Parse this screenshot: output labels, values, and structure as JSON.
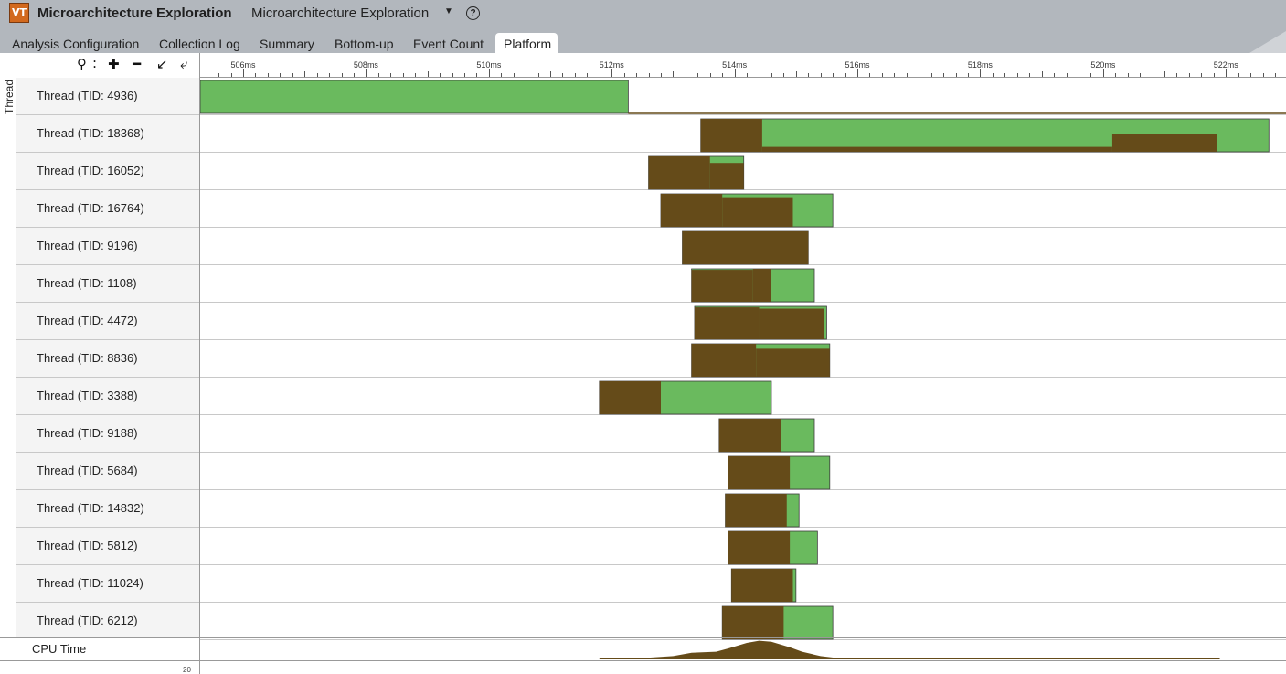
{
  "app": {
    "title": "Microarchitecture Exploration",
    "analysis_name": "Microarchitecture Exploration",
    "logo_text": "VT",
    "logo_icon": "vtune-logo-icon",
    "dropdown_icon": "chevron-down-icon",
    "help_icon": "help-circle-icon",
    "help_glyph": "?"
  },
  "tabs": [
    {
      "label": "Analysis Configuration",
      "active": false
    },
    {
      "label": "Collection Log",
      "active": false
    },
    {
      "label": "Summary",
      "active": false
    },
    {
      "label": "Bottom-up",
      "active": false
    },
    {
      "label": "Event Count",
      "active": false
    },
    {
      "label": "Platform",
      "active": true
    }
  ],
  "toolbar": {
    "zoom_icon": "magnifier-icon",
    "zoom_in_icon": "plus-icon",
    "zoom_out_icon": "minus-icon",
    "zoom_back_icon": "arrow-back-icon",
    "zoom_reset_icon": "arrow-reset-icon"
  },
  "axis_label": "Thread",
  "timeline": {
    "unit": "ms",
    "ticks": [
      "506ms",
      "508ms",
      "510ms",
      "512ms",
      "514ms",
      "516ms",
      "518ms",
      "520ms",
      "522ms"
    ],
    "range_ms": [
      505.3,
      523.0
    ],
    "colors": {
      "running": "#6aba5e",
      "cpu_time": "#654b19",
      "grid": "#c8c8c8"
    }
  },
  "threads": [
    {
      "label": "Thread (TID: 4936)",
      "running": [
        505.3,
        512.27
      ],
      "cpu": [],
      "full_cpu": true
    },
    {
      "label": "Thread (TID: 18368)",
      "running": [
        513.45,
        522.7
      ],
      "cpu": [
        [
          513.45,
          514.45,
          1.0
        ],
        [
          514.45,
          520.15,
          0.15
        ],
        [
          520.15,
          521.85,
          0.55
        ],
        [
          521.85,
          522.7,
          0.0
        ]
      ]
    },
    {
      "label": "Thread (TID: 16052)",
      "running": [
        512.6,
        514.15
      ],
      "cpu": [
        [
          512.6,
          513.6,
          1.0
        ],
        [
          513.6,
          514.15,
          0.8
        ]
      ]
    },
    {
      "label": "Thread (TID: 16764)",
      "running": [
        512.8,
        515.6
      ],
      "cpu": [
        [
          512.8,
          513.8,
          1.0
        ],
        [
          513.8,
          514.95,
          0.9
        ],
        [
          514.95,
          515.6,
          0.0
        ]
      ]
    },
    {
      "label": "Thread (TID: 9196)",
      "running": [
        513.15,
        515.2
      ],
      "cpu": [
        [
          513.15,
          515.2,
          1.0
        ]
      ]
    },
    {
      "label": "Thread (TID: 1108)",
      "running": [
        513.3,
        515.3
      ],
      "cpu": [
        [
          513.3,
          514.3,
          0.97
        ],
        [
          514.3,
          514.6,
          1.0
        ],
        [
          514.6,
          515.3,
          0.0
        ]
      ]
    },
    {
      "label": "Thread (TID: 4472)",
      "running": [
        513.35,
        515.5
      ],
      "cpu": [
        [
          513.35,
          514.4,
          0.97
        ],
        [
          514.4,
          515.45,
          0.93
        ],
        [
          515.45,
          515.5,
          0.0
        ]
      ]
    },
    {
      "label": "Thread (TID: 8836)",
      "running": [
        513.3,
        515.55
      ],
      "cpu": [
        [
          513.3,
          514.35,
          1.0
        ],
        [
          514.35,
          515.55,
          0.85
        ]
      ]
    },
    {
      "label": "Thread (TID: 3388)",
      "running": [
        511.8,
        514.6
      ],
      "cpu": [
        [
          511.8,
          512.8,
          1.0
        ],
        [
          512.8,
          514.6,
          0.0
        ]
      ]
    },
    {
      "label": "Thread (TID: 9188)",
      "running": [
        513.75,
        515.3
      ],
      "cpu": [
        [
          513.75,
          514.75,
          1.0
        ],
        [
          514.75,
          515.3,
          0.0
        ]
      ]
    },
    {
      "label": "Thread (TID: 5684)",
      "running": [
        513.9,
        515.55
      ],
      "cpu": [
        [
          513.9,
          514.9,
          1.0
        ],
        [
          514.9,
          515.55,
          0.0
        ]
      ]
    },
    {
      "label": "Thread (TID: 14832)",
      "running": [
        513.85,
        515.05
      ],
      "cpu": [
        [
          513.85,
          514.85,
          1.0
        ],
        [
          514.85,
          515.05,
          0.0
        ]
      ]
    },
    {
      "label": "Thread (TID: 5812)",
      "running": [
        513.9,
        515.35
      ],
      "cpu": [
        [
          513.9,
          514.9,
          1.0
        ],
        [
          514.9,
          515.35,
          0.0
        ]
      ]
    },
    {
      "label": "Thread (TID: 11024)",
      "running": [
        513.95,
        515.0
      ],
      "cpu": [
        [
          513.95,
          514.95,
          1.0
        ],
        [
          514.95,
          515.0,
          0.0
        ]
      ]
    },
    {
      "label": "Thread (TID: 6212)",
      "running": [
        513.8,
        515.6
      ],
      "cpu": [
        [
          513.8,
          514.8,
          1.0
        ],
        [
          514.8,
          515.6,
          0.0
        ]
      ]
    }
  ],
  "cpu_time": {
    "label": "CPU Time",
    "scale_value": "20",
    "profile": [
      [
        511.8,
        0.05
      ],
      [
        512.6,
        0.08
      ],
      [
        513.0,
        0.15
      ],
      [
        513.3,
        0.3
      ],
      [
        513.7,
        0.35
      ],
      [
        513.9,
        0.5
      ],
      [
        514.2,
        0.75
      ],
      [
        514.4,
        0.85
      ],
      [
        514.6,
        0.8
      ],
      [
        514.9,
        0.55
      ],
      [
        515.1,
        0.35
      ],
      [
        515.4,
        0.15
      ],
      [
        515.7,
        0.05
      ],
      [
        516.0,
        0.04
      ],
      [
        521.9,
        0.04
      ]
    ]
  }
}
